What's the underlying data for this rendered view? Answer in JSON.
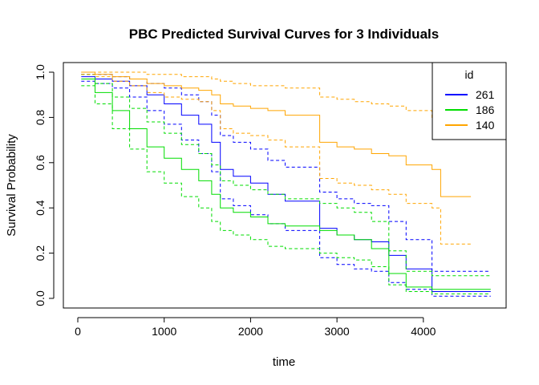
{
  "chart_data": {
    "type": "line",
    "title": "PBC Predicted Survival Curves for 3 Individuals",
    "xlabel": "time",
    "ylabel": "Survival Probability",
    "xlim": [
      0,
      4800
    ],
    "ylim": [
      0,
      1.0
    ],
    "x_ticks": [
      0,
      1000,
      2000,
      3000,
      4000
    ],
    "y_ticks": [
      0.0,
      0.2,
      0.4,
      0.6,
      0.8,
      1.0
    ],
    "y_tick_labels": [
      "0.0",
      "0.2",
      "0.4",
      "0.6",
      "0.8",
      "1.0"
    ],
    "grid": false,
    "step": true,
    "legend": {
      "title": "id",
      "position": "top-right"
    },
    "series": [
      {
        "name": "261",
        "color": "#0000ff",
        "x": [
          40,
          200,
          400,
          600,
          800,
          1000,
          1200,
          1400,
          1550,
          1650,
          1800,
          2000,
          2200,
          2400,
          2800,
          3000,
          3200,
          3400,
          3600,
          3800,
          4100,
          4780
        ],
        "y": [
          0.98,
          0.97,
          0.96,
          0.94,
          0.9,
          0.86,
          0.81,
          0.77,
          0.69,
          0.57,
          0.54,
          0.51,
          0.46,
          0.43,
          0.31,
          0.28,
          0.26,
          0.25,
          0.19,
          0.13,
          0.03,
          0.03
        ],
        "lower": [
          0.96,
          0.95,
          0.93,
          0.89,
          0.83,
          0.77,
          0.7,
          0.64,
          0.56,
          0.44,
          0.41,
          0.37,
          0.33,
          0.3,
          0.18,
          0.15,
          0.13,
          0.12,
          0.07,
          0.04,
          0.01,
          0.01
        ],
        "upper": [
          0.99,
          0.99,
          0.98,
          0.97,
          0.95,
          0.93,
          0.9,
          0.87,
          0.81,
          0.72,
          0.69,
          0.66,
          0.61,
          0.58,
          0.47,
          0.44,
          0.42,
          0.41,
          0.34,
          0.26,
          0.12,
          0.12
        ]
      },
      {
        "name": "186",
        "color": "#00dd00",
        "x": [
          40,
          200,
          400,
          600,
          800,
          1000,
          1200,
          1400,
          1550,
          1650,
          1800,
          2000,
          2200,
          2400,
          2800,
          3000,
          3200,
          3400,
          3600,
          3800,
          4100,
          4780
        ],
        "y": [
          0.97,
          0.91,
          0.83,
          0.75,
          0.67,
          0.62,
          0.57,
          0.52,
          0.46,
          0.4,
          0.38,
          0.36,
          0.33,
          0.32,
          0.3,
          0.28,
          0.26,
          0.22,
          0.11,
          0.05,
          0.04,
          0.04
        ],
        "lower": [
          0.94,
          0.86,
          0.75,
          0.66,
          0.56,
          0.51,
          0.45,
          0.4,
          0.34,
          0.3,
          0.28,
          0.26,
          0.23,
          0.22,
          0.2,
          0.18,
          0.17,
          0.14,
          0.06,
          0.03,
          0.02,
          0.02
        ],
        "upper": [
          0.99,
          0.95,
          0.89,
          0.84,
          0.78,
          0.73,
          0.68,
          0.64,
          0.59,
          0.52,
          0.5,
          0.48,
          0.46,
          0.44,
          0.42,
          0.4,
          0.38,
          0.34,
          0.21,
          0.12,
          0.1,
          0.1
        ]
      },
      {
        "name": "140",
        "color": "#ffa500",
        "x": [
          40,
          200,
          400,
          600,
          800,
          1000,
          1200,
          1400,
          1550,
          1650,
          1800,
          2000,
          2200,
          2400,
          2800,
          3000,
          3200,
          3400,
          3600,
          3800,
          4100,
          4200,
          4550
        ],
        "y": [
          1.0,
          0.99,
          0.98,
          0.97,
          0.95,
          0.94,
          0.93,
          0.92,
          0.9,
          0.86,
          0.85,
          0.84,
          0.83,
          0.81,
          0.69,
          0.67,
          0.66,
          0.64,
          0.63,
          0.59,
          0.57,
          0.45,
          0.45
        ],
        "lower": [
          0.99,
          0.98,
          0.96,
          0.94,
          0.91,
          0.89,
          0.88,
          0.87,
          0.83,
          0.75,
          0.73,
          0.72,
          0.7,
          0.67,
          0.53,
          0.51,
          0.5,
          0.48,
          0.46,
          0.42,
          0.4,
          0.24,
          0.24
        ],
        "upper": [
          1.0,
          1.0,
          1.0,
          1.0,
          0.99,
          0.99,
          0.98,
          0.98,
          0.97,
          0.96,
          0.95,
          0.94,
          0.94,
          0.93,
          0.89,
          0.88,
          0.87,
          0.86,
          0.85,
          0.83,
          0.8,
          0.78,
          0.78
        ]
      }
    ]
  }
}
